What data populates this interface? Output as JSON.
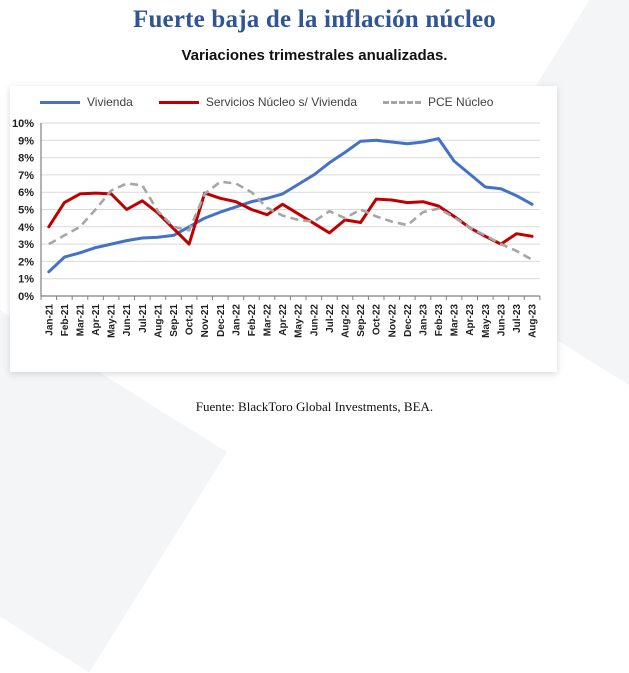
{
  "header": {
    "title": "Fuerte baja de la inflación núcleo",
    "subtitle": "Variaciones trimestrales anualizadas."
  },
  "footer": {
    "source": "Fuente: BlackToro Global Investments, BEA."
  },
  "colors": {
    "title_blue": "#2F5597",
    "vivienda": "#4472C4",
    "servicios": "#C00000",
    "pce": "#A6A6A6",
    "gridline": "#DADADA",
    "axis": "#7F7F7F",
    "axis_text": "#1F1F1F"
  },
  "chart_data": {
    "type": "line",
    "title": "Fuerte baja de la inflación núcleo",
    "subtitle": "Variaciones trimestrales anualizadas.",
    "xlabel": "",
    "ylabel": "",
    "ylim": [
      0,
      10
    ],
    "grid": true,
    "legend_position": "top",
    "y_tick_labels": [
      "0%",
      "1%",
      "2%",
      "3%",
      "4%",
      "5%",
      "6%",
      "7%",
      "8%",
      "9%",
      "10%"
    ],
    "categories": [
      "Jan-21",
      "Feb-21",
      "Mar-21",
      "Apr-21",
      "May-21",
      "Jun-21",
      "Jul-21",
      "Aug-21",
      "Sep-21",
      "Oct-21",
      "Nov-21",
      "Dec-21",
      "Jan-22",
      "Feb-22",
      "Mar-22",
      "Apr-22",
      "May-22",
      "Jun-22",
      "Jul-22",
      "Aug-22",
      "Sep-22",
      "Oct-22",
      "Nov-22",
      "Dec-22",
      "Jan-23",
      "Feb-23",
      "Mar-23",
      "Apr-23",
      "May-23",
      "Jun-23",
      "Jul-23",
      "Aug-23"
    ],
    "series": [
      {
        "name": "Vivienda",
        "color_key": "vivienda",
        "style": "solid",
        "values": [
          1.4,
          2.25,
          2.5,
          2.8,
          3.0,
          3.2,
          3.35,
          3.4,
          3.5,
          4.0,
          4.5,
          4.85,
          5.15,
          5.45,
          5.65,
          5.9,
          6.45,
          7.0,
          7.7,
          8.3,
          8.95,
          9.0,
          8.9,
          8.8,
          8.9,
          9.1,
          7.8,
          7.05,
          6.3,
          6.2,
          5.8,
          5.3
        ]
      },
      {
        "name": "Servicios Núcleo s/ Vivienda",
        "color_key": "servicios",
        "style": "solid",
        "values": [
          4.0,
          5.4,
          5.9,
          5.95,
          5.9,
          5.0,
          5.5,
          4.8,
          3.9,
          3.0,
          5.95,
          5.65,
          5.45,
          5.0,
          4.7,
          5.3,
          4.75,
          4.2,
          3.65,
          4.4,
          4.25,
          5.6,
          5.55,
          5.4,
          5.45,
          5.2,
          4.6,
          3.95,
          3.45,
          3.0,
          3.6,
          3.45
        ]
      },
      {
        "name": "PCE Núcleo",
        "color_key": "pce",
        "style": "dashed",
        "values": [
          3.0,
          3.5,
          4.0,
          5.0,
          6.1,
          6.5,
          6.4,
          4.9,
          4.0,
          3.8,
          5.9,
          6.6,
          6.5,
          6.0,
          5.1,
          4.65,
          4.4,
          4.3,
          4.9,
          4.5,
          5.0,
          4.6,
          4.3,
          4.1,
          4.85,
          5.05,
          4.55,
          3.95,
          3.5,
          3.0,
          2.6,
          2.1
        ]
      }
    ]
  }
}
